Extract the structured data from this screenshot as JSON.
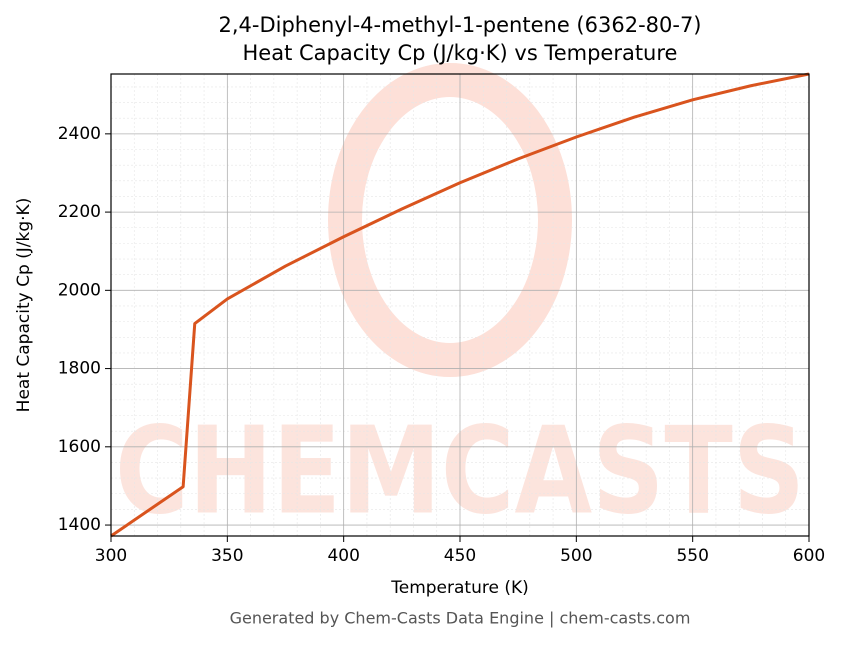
{
  "chart_data": {
    "type": "line",
    "title": [
      "2,4-Diphenyl-4-methyl-1-pentene (6362-80-7)",
      "Heat Capacity Cp (J/kg·K) vs Temperature"
    ],
    "xlabel": "Temperature (K)",
    "ylabel": "Heat Capacity Cp (J/kg·K)",
    "footer": "Generated by Chem-Casts Data Engine | chem-casts.com",
    "watermark": "CHEMCASTS",
    "x": [
      300,
      331,
      336,
      350,
      375,
      400,
      425,
      450,
      475,
      500,
      525,
      550,
      575,
      600
    ],
    "series": [
      {
        "name": "Cp",
        "color": "#d9541e",
        "values": [
          1372,
          1498,
          1915,
          1978,
          2062,
          2137,
          2208,
          2275,
          2336,
          2392,
          2443,
          2487,
          2523,
          2553
        ]
      }
    ],
    "xlim": [
      300,
      600
    ],
    "ylim": [
      1372,
      2553
    ],
    "xticks": [
      300,
      350,
      400,
      450,
      500,
      550,
      600
    ],
    "yticks": [
      1400,
      1600,
      1800,
      2000,
      2200,
      2400
    ],
    "xminorticks": [
      310,
      320,
      330,
      340,
      360,
      370,
      380,
      390,
      410,
      420,
      430,
      440,
      460,
      470,
      480,
      490,
      510,
      520,
      530,
      540,
      560,
      570,
      580,
      590
    ],
    "yminorticks": [
      1440,
      1480,
      1520,
      1560,
      1640,
      1680,
      1720,
      1760,
      1840,
      1880,
      1920,
      1960,
      2040,
      2080,
      2120,
      2160,
      2240,
      2280,
      2320,
      2360,
      2440,
      2480,
      2520
    ],
    "grid": true
  }
}
